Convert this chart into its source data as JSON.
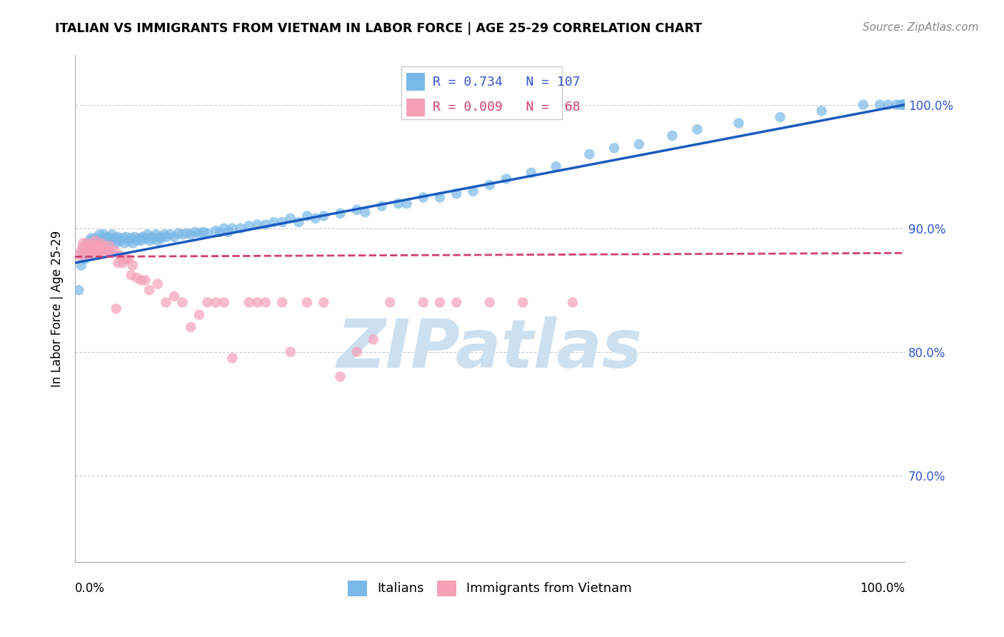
{
  "title": "ITALIAN VS IMMIGRANTS FROM VIETNAM IN LABOR FORCE | AGE 25-29 CORRELATION CHART",
  "source": "Source: ZipAtlas.com",
  "ylabel": "In Labor Force | Age 25-29",
  "ytick_labels": [
    "100.0%",
    "90.0%",
    "80.0%",
    "70.0%"
  ],
  "ytick_values": [
    1.0,
    0.9,
    0.8,
    0.7
  ],
  "xlim": [
    0.0,
    1.0
  ],
  "ylim": [
    0.63,
    1.04
  ],
  "blue_R": 0.734,
  "blue_N": 107,
  "pink_R": 0.009,
  "pink_N": 68,
  "blue_color": "#7ab8e8",
  "pink_color": "#f4a0b8",
  "blue_line_color": "#1a5abf",
  "pink_line_color": "#d04070",
  "watermark_text": "ZIPatlas",
  "watermark_color": "#cce0f0",
  "blue_scatter_x": [
    0.005,
    0.008,
    0.01,
    0.012,
    0.015,
    0.018,
    0.02,
    0.02,
    0.022,
    0.025,
    0.025,
    0.028,
    0.03,
    0.03,
    0.03,
    0.032,
    0.035,
    0.035,
    0.038,
    0.04,
    0.04,
    0.042,
    0.044,
    0.045,
    0.048,
    0.05,
    0.05,
    0.052,
    0.055,
    0.058,
    0.06,
    0.062,
    0.065,
    0.068,
    0.07,
    0.072,
    0.075,
    0.078,
    0.08,
    0.082,
    0.085,
    0.088,
    0.09,
    0.092,
    0.095,
    0.098,
    0.1,
    0.102,
    0.105,
    0.108,
    0.11,
    0.115,
    0.12,
    0.125,
    0.13,
    0.135,
    0.14,
    0.145,
    0.15,
    0.155,
    0.16,
    0.17,
    0.175,
    0.18,
    0.185,
    0.19,
    0.2,
    0.21,
    0.22,
    0.23,
    0.24,
    0.25,
    0.26,
    0.27,
    0.28,
    0.29,
    0.3,
    0.32,
    0.34,
    0.35,
    0.37,
    0.39,
    0.4,
    0.42,
    0.44,
    0.46,
    0.48,
    0.5,
    0.52,
    0.55,
    0.58,
    0.62,
    0.65,
    0.68,
    0.72,
    0.75,
    0.8,
    0.85,
    0.9,
    0.95,
    0.97,
    0.98,
    0.99,
    0.995,
    0.998,
    1.0,
    1.0
  ],
  "blue_scatter_y": [
    0.85,
    0.87,
    0.88,
    0.875,
    0.888,
    0.89,
    0.882,
    0.892,
    0.885,
    0.888,
    0.892,
    0.888,
    0.885,
    0.89,
    0.895,
    0.888,
    0.89,
    0.895,
    0.892,
    0.888,
    0.893,
    0.89,
    0.892,
    0.895,
    0.89,
    0.888,
    0.892,
    0.893,
    0.89,
    0.892,
    0.888,
    0.893,
    0.89,
    0.892,
    0.888,
    0.893,
    0.89,
    0.892,
    0.89,
    0.893,
    0.892,
    0.895,
    0.89,
    0.893,
    0.892,
    0.895,
    0.89,
    0.893,
    0.892,
    0.895,
    0.893,
    0.895,
    0.893,
    0.896,
    0.895,
    0.896,
    0.895,
    0.897,
    0.896,
    0.897,
    0.896,
    0.898,
    0.897,
    0.9,
    0.897,
    0.9,
    0.9,
    0.902,
    0.903,
    0.903,
    0.905,
    0.905,
    0.908,
    0.905,
    0.91,
    0.908,
    0.91,
    0.912,
    0.915,
    0.913,
    0.918,
    0.92,
    0.92,
    0.925,
    0.925,
    0.928,
    0.93,
    0.935,
    0.94,
    0.945,
    0.95,
    0.96,
    0.965,
    0.968,
    0.975,
    0.98,
    0.985,
    0.99,
    0.995,
    1.0,
    1.0,
    1.0,
    1.0,
    1.0,
    1.0,
    1.0,
    1.0
  ],
  "pink_scatter_x": [
    0.005,
    0.008,
    0.01,
    0.01,
    0.012,
    0.015,
    0.015,
    0.018,
    0.018,
    0.02,
    0.02,
    0.022,
    0.022,
    0.025,
    0.025,
    0.025,
    0.028,
    0.028,
    0.03,
    0.03,
    0.032,
    0.032,
    0.035,
    0.038,
    0.04,
    0.042,
    0.045,
    0.048,
    0.05,
    0.052,
    0.055,
    0.058,
    0.06,
    0.062,
    0.065,
    0.068,
    0.07,
    0.075,
    0.08,
    0.085,
    0.09,
    0.1,
    0.11,
    0.12,
    0.13,
    0.14,
    0.15,
    0.16,
    0.17,
    0.18,
    0.19,
    0.21,
    0.22,
    0.23,
    0.25,
    0.26,
    0.28,
    0.3,
    0.32,
    0.34,
    0.36,
    0.38,
    0.42,
    0.44,
    0.46,
    0.5,
    0.54,
    0.6
  ],
  "pink_scatter_y": [
    0.878,
    0.882,
    0.885,
    0.888,
    0.878,
    0.882,
    0.888,
    0.882,
    0.886,
    0.88,
    0.885,
    0.88,
    0.888,
    0.882,
    0.886,
    0.89,
    0.882,
    0.886,
    0.88,
    0.886,
    0.882,
    0.888,
    0.886,
    0.882,
    0.882,
    0.886,
    0.88,
    0.882,
    0.835,
    0.872,
    0.878,
    0.872,
    0.875,
    0.875,
    0.875,
    0.862,
    0.87,
    0.86,
    0.858,
    0.858,
    0.85,
    0.855,
    0.84,
    0.845,
    0.84,
    0.82,
    0.83,
    0.84,
    0.84,
    0.84,
    0.795,
    0.84,
    0.84,
    0.84,
    0.84,
    0.8,
    0.84,
    0.84,
    0.78,
    0.8,
    0.81,
    0.84,
    0.84,
    0.84,
    0.84,
    0.84,
    0.84,
    0.84
  ],
  "blue_line_x0": 0.0,
  "blue_line_x1": 1.0,
  "blue_line_y0": 0.872,
  "blue_line_y1": 1.0,
  "pink_line_x0": 0.0,
  "pink_line_x1": 1.0,
  "pink_line_y0": 0.877,
  "pink_line_y1": 0.88
}
